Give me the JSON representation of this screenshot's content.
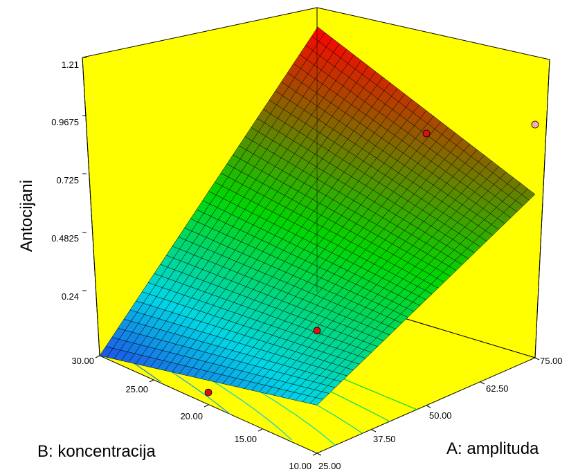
{
  "chart_data": {
    "type": "surface3d",
    "title": "",
    "zlabel": "Antocijani",
    "xlabel": "A: amplituda",
    "ylabel": "B: koncentracija",
    "z_ticks": [
      "0.24",
      "0.4825",
      "0.725",
      "0.9675",
      "1.21"
    ],
    "x_ticks": [
      "25.00",
      "37.50",
      "50.00",
      "62.50",
      "75.00"
    ],
    "y_ticks": [
      "10.00",
      "15.00",
      "20.00",
      "25.00",
      "30.00"
    ],
    "xlim": [
      25,
      75
    ],
    "ylim": [
      10,
      30
    ],
    "zlim": [
      0.24,
      1.21
    ],
    "surface_corners": [
      {
        "x": 25,
        "y": 30,
        "z": 0.24
      },
      {
        "x": 25,
        "y": 10,
        "z": 0.44
      },
      {
        "x": 75,
        "y": 10,
        "z": 0.92
      },
      {
        "x": 75,
        "y": 30,
        "z": 1.21
      }
    ],
    "design_points": [
      {
        "x": 25,
        "y": 20,
        "z": 0.29,
        "color": "#dd1111"
      },
      {
        "x": 25,
        "y": 10,
        "z": 0.75,
        "color": "#dd1111"
      },
      {
        "x": 75,
        "y": 20,
        "z": 0.97,
        "color": "#dd1111"
      },
      {
        "x": 75,
        "y": 10,
        "z": 1.21,
        "color": "#ffaaaa"
      }
    ],
    "colors": {
      "background": "#ffff00",
      "low": "#1e50e6",
      "mid": "#00d700",
      "high": "#ff0000",
      "grid": "#000000"
    }
  }
}
